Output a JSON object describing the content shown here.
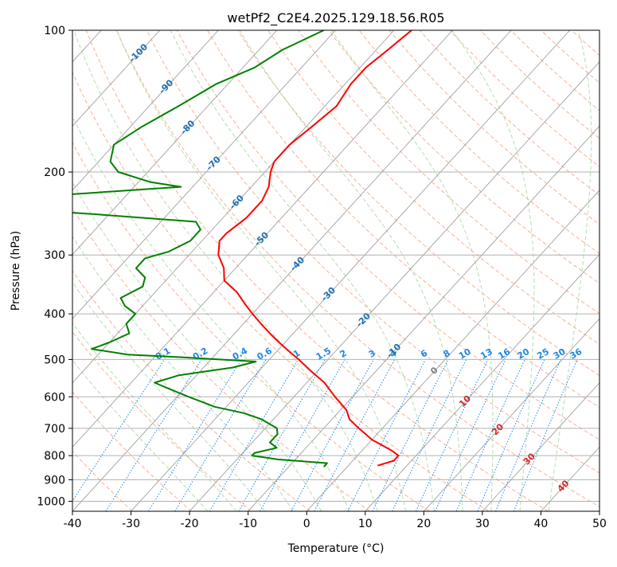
{
  "chart_data": {
    "type": "skew-t",
    "title": "wetPf2_C2E4.2025.129.18.56.R05",
    "xlabel": "Temperature (°C)",
    "ylabel": "Pressure (hPa)",
    "xlim": [
      -40,
      50
    ],
    "ylim": [
      1050,
      100
    ],
    "x_ticks": [
      -40,
      -30,
      -20,
      -10,
      0,
      10,
      20,
      30,
      40,
      50
    ],
    "y_ticks": [
      100,
      200,
      300,
      400,
      500,
      600,
      700,
      800,
      900,
      1000
    ],
    "y_scale": "log",
    "grid": true,
    "colors": {
      "temperature": "#ff0000",
      "dewpoint": "#008000",
      "isotherm": "#a0a0a0",
      "dry_adiabat": "#f4a582",
      "moist_adiabat": "#a6d8a0",
      "mixing_ratio": "#1e88e5",
      "dark_label": "#1f6fb0",
      "red_label": "#d62728",
      "gray_label": "#808080"
    },
    "isotherm_labels": [
      {
        "text": "-100",
        "t": -100,
        "p": 112,
        "color": "dark"
      },
      {
        "text": "-90",
        "t": -90,
        "p": 132,
        "color": "dark"
      },
      {
        "text": "-80",
        "t": -80,
        "p": 161,
        "color": "dark"
      },
      {
        "text": "-70",
        "t": -70,
        "p": 192,
        "color": "dark"
      },
      {
        "text": "-60",
        "t": -60,
        "p": 232,
        "color": "dark"
      },
      {
        "text": "-50",
        "t": -50,
        "p": 278,
        "color": "dark"
      },
      {
        "text": "-40",
        "t": -40,
        "p": 314,
        "color": "dark"
      },
      {
        "text": "-30",
        "t": -30,
        "p": 364,
        "color": "dark"
      },
      {
        "text": "-20",
        "t": -20,
        "p": 413,
        "color": "dark"
      },
      {
        "text": "-10",
        "t": -10,
        "p": 480,
        "color": "dark"
      },
      {
        "text": "0",
        "t": 0,
        "p": 529,
        "color": "gray"
      },
      {
        "text": "10",
        "t": 10,
        "p": 614,
        "color": "red"
      },
      {
        "text": "20",
        "t": 20,
        "p": 705,
        "color": "red"
      },
      {
        "text": "30",
        "t": 30,
        "p": 815,
        "color": "red"
      },
      {
        "text": "40",
        "t": 40,
        "p": 930,
        "color": "red"
      }
    ],
    "mixing_ratio_lines": [
      0.1,
      0.2,
      0.4,
      0.6,
      1,
      1.5,
      2,
      3,
      4,
      6,
      8,
      10,
      13,
      16,
      20,
      25,
      30,
      36
    ],
    "mixing_ratio_label_pressure": 500,
    "temperature": {
      "p": [
        100,
        110,
        120,
        130,
        145,
        160,
        175,
        190,
        200,
        215,
        230,
        250,
        270,
        280,
        300,
        320,
        340,
        360,
        380,
        400,
        420,
        440,
        460,
        480,
        500,
        530,
        560,
        600,
        640,
        670,
        700,
        740,
        780,
        800,
        820,
        840
      ],
      "t": [
        -57,
        -58,
        -59,
        -59,
        -58,
        -59,
        -60,
        -60,
        -59,
        -57,
        -56,
        -56,
        -57,
        -57,
        -55,
        -52,
        -50,
        -46,
        -43,
        -40,
        -37,
        -34,
        -31,
        -28,
        -25,
        -21,
        -17,
        -13,
        -9,
        -7,
        -4,
        0,
        5,
        7,
        7,
        5
      ]
    },
    "dewpoint": {
      "p": [
        100,
        110,
        120,
        130,
        145,
        160,
        175,
        190,
        200,
        210,
        215,
        225,
        240,
        245,
        255,
        265,
        280,
        295,
        305,
        320,
        335,
        350,
        370,
        385,
        400,
        420,
        440,
        460,
        475,
        488,
        495,
        505,
        520,
        540,
        560,
        575,
        600,
        630,
        650,
        670,
        700,
        720,
        750,
        770,
        790,
        800,
        815,
        830,
        845
      ],
      "t": [
        -72,
        -76,
        -78,
        -82,
        -85,
        -88,
        -90,
        -88,
        -85,
        -78,
        -72,
        -94,
        -96,
        -84,
        -64,
        -62,
        -62,
        -64,
        -67,
        -67,
        -64,
        -63,
        -65,
        -63,
        -60,
        -60,
        -58,
        -60,
        -62,
        -55,
        -45,
        -32,
        -35,
        -43,
        -46,
        -43,
        -38,
        -32,
        -26,
        -22,
        -18,
        -17,
        -17,
        -15,
        -18,
        -18,
        -13,
        -4,
        -4
      ]
    }
  }
}
